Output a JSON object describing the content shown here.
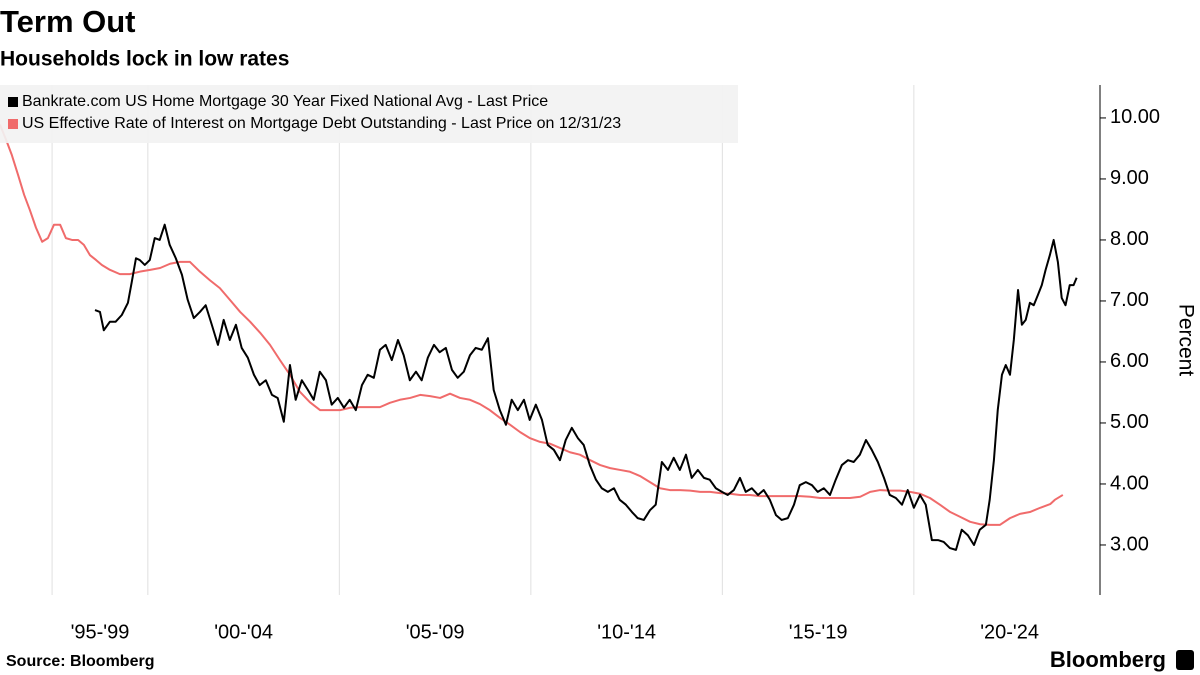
{
  "chart_data": {
    "type": "line",
    "title": "Term Out",
    "subtitle": "Households lock in low rates",
    "y_label": "Percent",
    "source": "Source: Bloomberg",
    "brand": "Bloomberg",
    "legend": "top-left",
    "xlim": [
      1996.14,
      2024.86
    ],
    "xticks": [
      {
        "value": 1998.75,
        "label": "'95-'99"
      },
      {
        "value": 2002.5,
        "label": "'00-'04"
      },
      {
        "value": 2007.5,
        "label": "'05-'09"
      },
      {
        "value": 2012.5,
        "label": "'10-'14"
      },
      {
        "value": 2017.5,
        "label": "'15-'19"
      },
      {
        "value": 2022.5,
        "label": "'20-'24"
      }
    ],
    "xgrid": [
      1997.5,
      2000,
      2005,
      2010,
      2015,
      2020
    ],
    "ylim": [
      2.18,
      10.54
    ],
    "yticks": [
      {
        "value": 3,
        "label": "3.00"
      },
      {
        "value": 4,
        "label": "4.00"
      },
      {
        "value": 5,
        "label": "5.00"
      },
      {
        "value": 6,
        "label": "6.00"
      },
      {
        "value": 7,
        "label": "7.00"
      },
      {
        "value": 8,
        "label": "8.00"
      },
      {
        "value": 9,
        "label": "9.00"
      },
      {
        "value": 10,
        "label": "10.00"
      }
    ],
    "series": [
      {
        "name": "Bankrate.com US Home Mortgage 30 Year Fixed National Avg - Last Price",
        "color": "#000000",
        "x": [
          1998.62,
          1998.75,
          1998.85,
          1999.01,
          1999.16,
          1999.32,
          1999.48,
          1999.58,
          1999.69,
          1999.79,
          1999.92,
          2000.05,
          2000.18,
          2000.31,
          2000.44,
          2000.57,
          2000.73,
          2000.89,
          2001.04,
          2001.2,
          2001.36,
          2001.51,
          2001.67,
          2001.83,
          2001.98,
          2002.14,
          2002.3,
          2002.45,
          2002.61,
          2002.77,
          2002.92,
          2003.08,
          2003.24,
          2003.39,
          2003.55,
          2003.71,
          2003.86,
          2004.02,
          2004.18,
          2004.33,
          2004.49,
          2004.65,
          2004.8,
          2004.96,
          2005.12,
          2005.27,
          2005.43,
          2005.59,
          2005.74,
          2005.9,
          2006.06,
          2006.21,
          2006.37,
          2006.53,
          2006.68,
          2006.84,
          2007.0,
          2007.15,
          2007.31,
          2007.47,
          2007.62,
          2007.78,
          2007.94,
          2008.09,
          2008.25,
          2008.41,
          2008.56,
          2008.72,
          2008.88,
          2009.03,
          2009.19,
          2009.35,
          2009.5,
          2009.66,
          2009.82,
          2009.97,
          2010.13,
          2010.29,
          2010.44,
          2010.6,
          2010.76,
          2010.91,
          2011.07,
          2011.23,
          2011.38,
          2011.54,
          2011.7,
          2011.85,
          2012.01,
          2012.17,
          2012.32,
          2012.48,
          2012.64,
          2012.79,
          2012.95,
          2013.11,
          2013.26,
          2013.42,
          2013.58,
          2013.73,
          2013.89,
          2014.05,
          2014.2,
          2014.36,
          2014.52,
          2014.67,
          2014.83,
          2014.99,
          2015.14,
          2015.3,
          2015.46,
          2015.61,
          2015.77,
          2015.93,
          2016.08,
          2016.24,
          2016.4,
          2016.55,
          2016.71,
          2016.87,
          2017.02,
          2017.18,
          2017.34,
          2017.49,
          2017.65,
          2017.81,
          2017.96,
          2018.12,
          2018.28,
          2018.43,
          2018.59,
          2018.75,
          2018.9,
          2019.06,
          2019.22,
          2019.37,
          2019.53,
          2019.69,
          2019.84,
          2020.0,
          2020.16,
          2020.31,
          2020.47,
          2020.63,
          2020.78,
          2020.94,
          2021.1,
          2021.25,
          2021.41,
          2021.57,
          2021.72,
          2021.88,
          2021.98,
          2022.09,
          2022.19,
          2022.3,
          2022.4,
          2022.51,
          2022.61,
          2022.72,
          2022.82,
          2022.92,
          2023.03,
          2023.13,
          2023.24,
          2023.34,
          2023.44,
          2023.55,
          2023.65,
          2023.76,
          2023.86,
          2023.96,
          2024.07,
          2024.17,
          2024.25
        ],
        "values": [
          6.85,
          6.82,
          6.52,
          6.66,
          6.66,
          6.77,
          6.97,
          7.31,
          7.7,
          7.67,
          7.59,
          7.67,
          8.03,
          8.0,
          8.25,
          7.92,
          7.7,
          7.43,
          7.02,
          6.72,
          6.82,
          6.93,
          6.61,
          6.28,
          6.69,
          6.36,
          6.61,
          6.23,
          6.07,
          5.79,
          5.62,
          5.7,
          5.46,
          5.41,
          5.02,
          5.95,
          5.38,
          5.7,
          5.54,
          5.38,
          5.84,
          5.7,
          5.3,
          5.41,
          5.25,
          5.38,
          5.21,
          5.62,
          5.79,
          5.74,
          6.2,
          6.28,
          6.03,
          6.36,
          6.11,
          5.7,
          5.84,
          5.7,
          6.07,
          6.28,
          6.16,
          6.23,
          5.87,
          5.74,
          5.84,
          6.11,
          6.23,
          6.2,
          6.39,
          5.54,
          5.21,
          4.97,
          5.38,
          5.21,
          5.38,
          5.05,
          5.3,
          5.05,
          4.64,
          4.56,
          4.39,
          4.72,
          4.92,
          4.75,
          4.64,
          4.31,
          4.07,
          3.93,
          3.87,
          3.93,
          3.74,
          3.66,
          3.54,
          3.44,
          3.41,
          3.57,
          3.66,
          4.36,
          4.23,
          4.43,
          4.23,
          4.48,
          4.1,
          4.23,
          4.1,
          4.07,
          3.93,
          3.87,
          3.82,
          3.9,
          4.1,
          3.87,
          3.93,
          3.82,
          3.9,
          3.74,
          3.49,
          3.41,
          3.44,
          3.66,
          3.98,
          4.03,
          3.98,
          3.87,
          3.93,
          3.82,
          4.07,
          4.31,
          4.39,
          4.36,
          4.48,
          4.72,
          4.56,
          4.36,
          4.1,
          3.82,
          3.77,
          3.66,
          3.9,
          3.61,
          3.82,
          3.66,
          3.08,
          3.08,
          3.05,
          2.95,
          2.92,
          3.25,
          3.16,
          3.0,
          3.25,
          3.33,
          3.74,
          4.39,
          5.21,
          5.79,
          5.95,
          5.79,
          6.36,
          7.18,
          6.61,
          6.69,
          6.97,
          6.93,
          7.1,
          7.26,
          7.51,
          7.75,
          8.0,
          7.64,
          7.05,
          6.93,
          7.26,
          7.26,
          7.38
        ]
      },
      {
        "name": "US Effective Rate of Interest on Mortgage Debt Outstanding - Last Price on 12/31/23",
        "color": "#f06b6b",
        "x": [
          1996.14,
          1996.3,
          1996.45,
          1996.61,
          1996.77,
          1996.92,
          1997.08,
          1997.24,
          1997.39,
          1997.55,
          1997.71,
          1997.86,
          1998.02,
          1998.18,
          1998.33,
          1998.49,
          1998.65,
          1998.8,
          1999.01,
          1999.27,
          1999.53,
          1999.79,
          2000.06,
          2000.32,
          2000.58,
          2000.84,
          2001.1,
          2001.36,
          2001.62,
          2001.88,
          2002.14,
          2002.41,
          2002.67,
          2002.93,
          2003.19,
          2003.45,
          2003.71,
          2003.97,
          2004.23,
          2004.5,
          2004.76,
          2005.02,
          2005.28,
          2005.54,
          2005.8,
          2006.06,
          2006.32,
          2006.58,
          2006.85,
          2007.11,
          2007.37,
          2007.63,
          2007.89,
          2008.15,
          2008.41,
          2008.67,
          2008.93,
          2009.2,
          2009.46,
          2009.72,
          2009.98,
          2010.24,
          2010.5,
          2010.76,
          2011.02,
          2011.28,
          2011.55,
          2011.81,
          2012.07,
          2012.33,
          2012.59,
          2012.85,
          2013.11,
          2013.37,
          2013.63,
          2013.9,
          2014.16,
          2014.42,
          2014.68,
          2014.94,
          2015.2,
          2015.46,
          2015.72,
          2015.98,
          2016.25,
          2016.51,
          2016.77,
          2017.03,
          2017.29,
          2017.55,
          2017.81,
          2018.07,
          2018.33,
          2018.6,
          2018.86,
          2019.12,
          2019.38,
          2019.64,
          2019.9,
          2020.16,
          2020.42,
          2020.68,
          2020.95,
          2021.21,
          2021.47,
          2021.73,
          2021.99,
          2022.25,
          2022.51,
          2022.77,
          2023.03,
          2023.3,
          2023.56,
          2023.68,
          2023.89
        ],
        "values": [
          9.89,
          9.64,
          9.39,
          9.07,
          8.74,
          8.49,
          8.2,
          7.97,
          8.03,
          8.25,
          8.25,
          8.03,
          8.0,
          8.0,
          7.92,
          7.75,
          7.67,
          7.59,
          7.51,
          7.44,
          7.44,
          7.48,
          7.51,
          7.54,
          7.61,
          7.64,
          7.64,
          7.48,
          7.34,
          7.21,
          7.02,
          6.82,
          6.66,
          6.48,
          6.28,
          6.03,
          5.79,
          5.51,
          5.34,
          5.21,
          5.21,
          5.21,
          5.25,
          5.26,
          5.26,
          5.26,
          5.33,
          5.38,
          5.41,
          5.46,
          5.44,
          5.41,
          5.48,
          5.41,
          5.38,
          5.31,
          5.21,
          5.08,
          4.97,
          4.85,
          4.75,
          4.69,
          4.66,
          4.59,
          4.52,
          4.48,
          4.39,
          4.31,
          4.26,
          4.23,
          4.2,
          4.13,
          4.03,
          3.93,
          3.9,
          3.9,
          3.89,
          3.87,
          3.87,
          3.85,
          3.84,
          3.82,
          3.82,
          3.8,
          3.8,
          3.8,
          3.8,
          3.8,
          3.79,
          3.77,
          3.77,
          3.77,
          3.77,
          3.79,
          3.87,
          3.9,
          3.89,
          3.89,
          3.87,
          3.84,
          3.77,
          3.66,
          3.54,
          3.46,
          3.38,
          3.34,
          3.33,
          3.33,
          3.44,
          3.51,
          3.54,
          3.61,
          3.67,
          3.74,
          3.82
        ]
      }
    ]
  }
}
